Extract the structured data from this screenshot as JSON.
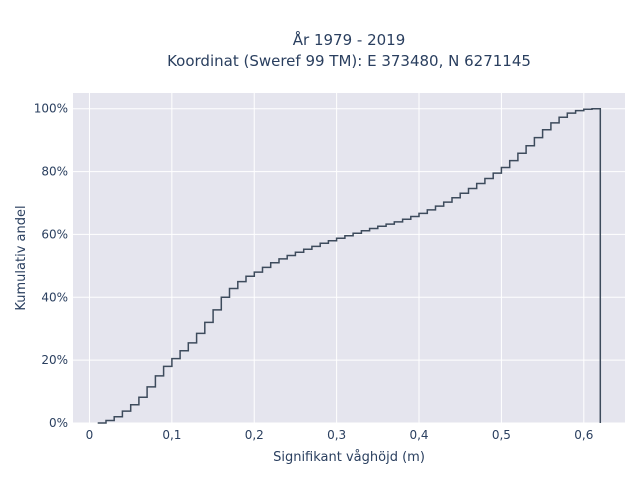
{
  "chart_data": {
    "type": "line",
    "title": "År 1979 - 2019",
    "subtitle": "Koordinat (Sweref 99 TM): E 373480, N 6271145",
    "xlabel": "Signifikant våghöjd (m)",
    "ylabel": "Kumulativ andel",
    "xlim": [
      -0.02,
      0.65
    ],
    "ylim": [
      0,
      1.05
    ],
    "grid": true,
    "line_color": "#3d4b5c",
    "x_ticks": [
      {
        "value": 0,
        "label": "0"
      },
      {
        "value": 0.1,
        "label": "0,1"
      },
      {
        "value": 0.2,
        "label": "0,2"
      },
      {
        "value": 0.3,
        "label": "0,3"
      },
      {
        "value": 0.4,
        "label": "0,4"
      },
      {
        "value": 0.5,
        "label": "0,5"
      },
      {
        "value": 0.6,
        "label": "0,6"
      }
    ],
    "y_ticks": [
      {
        "value": 0,
        "label": "0%"
      },
      {
        "value": 0.2,
        "label": "20%"
      },
      {
        "value": 0.4,
        "label": "40%"
      },
      {
        "value": 0.6,
        "label": "60%"
      },
      {
        "value": 0.8,
        "label": "80%"
      },
      {
        "value": 1.0,
        "label": "100%"
      }
    ],
    "series": [
      {
        "step": "hv",
        "x": [
          0.01,
          0.02,
          0.03,
          0.04,
          0.05,
          0.06,
          0.07,
          0.08,
          0.09,
          0.1,
          0.11,
          0.12,
          0.13,
          0.14,
          0.15,
          0.16,
          0.17,
          0.18,
          0.19,
          0.2,
          0.21,
          0.22,
          0.23,
          0.24,
          0.25,
          0.26,
          0.27,
          0.28,
          0.29,
          0.3,
          0.31,
          0.32,
          0.33,
          0.34,
          0.35,
          0.36,
          0.37,
          0.38,
          0.39,
          0.4,
          0.41,
          0.42,
          0.43,
          0.44,
          0.45,
          0.46,
          0.47,
          0.48,
          0.49,
          0.5,
          0.51,
          0.52,
          0.53,
          0.54,
          0.55,
          0.56,
          0.57,
          0.58,
          0.59,
          0.6,
          0.61,
          0.62,
          0.62
        ],
        "y": [
          0.0,
          0.008,
          0.02,
          0.038,
          0.058,
          0.082,
          0.115,
          0.15,
          0.18,
          0.205,
          0.23,
          0.255,
          0.285,
          0.32,
          0.36,
          0.4,
          0.428,
          0.45,
          0.467,
          0.48,
          0.495,
          0.51,
          0.522,
          0.533,
          0.543,
          0.553,
          0.562,
          0.572,
          0.58,
          0.588,
          0.596,
          0.604,
          0.612,
          0.619,
          0.626,
          0.633,
          0.64,
          0.648,
          0.657,
          0.667,
          0.678,
          0.69,
          0.703,
          0.717,
          0.731,
          0.746,
          0.762,
          0.778,
          0.795,
          0.813,
          0.835,
          0.858,
          0.882,
          0.908,
          0.933,
          0.955,
          0.973,
          0.986,
          0.994,
          0.998,
          1.0,
          1.0,
          0.0
        ]
      }
    ]
  }
}
